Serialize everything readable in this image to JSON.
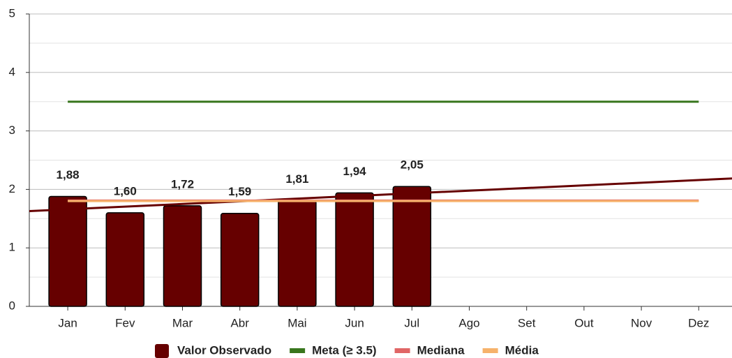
{
  "chart_data": {
    "type": "bar",
    "categories": [
      "Jan",
      "Fev",
      "Mar",
      "Abr",
      "Mai",
      "Jun",
      "Jul",
      "Ago",
      "Set",
      "Out",
      "Nov",
      "Dez"
    ],
    "bars": {
      "name": "Valor Observado",
      "color": "#660000",
      "values": [
        1.88,
        1.6,
        1.72,
        1.59,
        1.81,
        1.94,
        2.05
      ],
      "value_labels": [
        "1,88",
        "1,60",
        "1,72",
        "1,59",
        "1,81",
        "1,94",
        "2,05"
      ]
    },
    "lines": [
      {
        "name": "Meta (≥ 3.5)",
        "color": "#38761d",
        "values": [
          3.5,
          3.5,
          3.5,
          3.5,
          3.5,
          3.5,
          3.5,
          3.5,
          3.5,
          3.5,
          3.5,
          3.5
        ]
      },
      {
        "name": "Mediana",
        "color": "#e06666",
        "values": [
          1.81,
          1.81,
          1.81,
          1.81,
          1.81,
          1.81,
          1.81,
          1.81,
          1.81,
          1.81,
          1.81,
          1.81
        ]
      },
      {
        "name": "Média",
        "color": "#f6b26b",
        "values": [
          1.8,
          1.8,
          1.8,
          1.8,
          1.8,
          1.8,
          1.8,
          1.8,
          1.8,
          1.8,
          1.8,
          1.8
        ]
      }
    ],
    "trend": {
      "color": "#660000",
      "values": [
        1.66,
        2.16
      ]
    },
    "ylim": [
      0,
      5
    ],
    "yticks": [
      0,
      1,
      2,
      3,
      4,
      5
    ],
    "minor_yticks": [
      0.5,
      1.5,
      2.5,
      3.5,
      4.5
    ],
    "grid": true
  }
}
